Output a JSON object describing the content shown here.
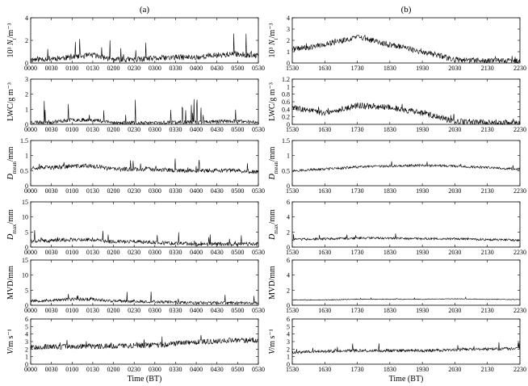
{
  "panels": [
    {
      "label": "(a)",
      "xlabel": "Time (BT)"
    },
    {
      "label": "(b)",
      "xlabel": "Time (BT)"
    }
  ],
  "chart_data": [
    {
      "type": "line",
      "column": 0,
      "ylabel": "10³ N_t/m⁻³",
      "ylim": [
        0,
        4
      ],
      "yticks": [
        "0",
        "2",
        "4"
      ],
      "x": [
        "0000",
        "0030",
        "0100",
        "0130",
        "0200",
        "0230",
        "0300",
        "0330",
        "0400",
        "0430",
        "0500",
        "0530"
      ],
      "values": [
        0.3,
        0.4,
        0.5,
        0.7,
        0.3,
        0.3,
        0.4,
        0.5,
        0.5,
        0.7,
        0.8,
        0.6
      ],
      "spike_amp": 2.4,
      "noise": 0.25,
      "seed": 11
    },
    {
      "type": "line",
      "column": 0,
      "ylabel": "LWC/g m⁻³",
      "ylim": [
        0,
        3
      ],
      "yticks": [
        "0",
        "1",
        "2",
        "3"
      ],
      "x": [
        "0000",
        "0030",
        "0100",
        "0130",
        "0200",
        "0230",
        "0300",
        "0330",
        "0400",
        "0430",
        "0500",
        "0530"
      ],
      "values": [
        0.15,
        0.15,
        0.3,
        0.3,
        0.1,
        0.1,
        0.1,
        0.15,
        0.15,
        0.2,
        0.2,
        0.15
      ],
      "spike_amp": 1.6,
      "noise": 0.12,
      "seed": 23
    },
    {
      "type": "line",
      "column": 0,
      "ylabel": "D_mean/mm",
      "ylim": [
        0,
        1.5
      ],
      "yticks": [
        "0",
        "0.5",
        "1",
        "1.5"
      ],
      "x": [
        "0000",
        "0030",
        "0100",
        "0130",
        "0200",
        "0230",
        "0300",
        "0330",
        "0400",
        "0430",
        "0500",
        "0530"
      ],
      "values": [
        0.6,
        0.6,
        0.65,
        0.65,
        0.55,
        0.55,
        0.55,
        0.5,
        0.5,
        0.5,
        0.5,
        0.45
      ],
      "spike_amp": 0.5,
      "noise": 0.07,
      "seed": 37
    },
    {
      "type": "line",
      "column": 0,
      "ylabel": "D_max/mm",
      "ylim": [
        0,
        15
      ],
      "yticks": [
        "0",
        "5",
        "10",
        "15"
      ],
      "x": [
        "0000",
        "0030",
        "0100",
        "0130",
        "0200",
        "0230",
        "0300",
        "0330",
        "0400",
        "0430",
        "0500",
        "0530"
      ],
      "values": [
        2,
        2.2,
        2.5,
        2.5,
        1.8,
        1.8,
        1.5,
        1.2,
        1,
        1,
        1,
        1
      ],
      "spike_amp": 4,
      "noise": 0.6,
      "seed": 41
    },
    {
      "type": "line",
      "column": 0,
      "ylabel": "MVD/mm",
      "ylim": [
        0,
        15
      ],
      "yticks": [
        "0",
        "5",
        "10",
        "15"
      ],
      "x": [
        "0000",
        "0030",
        "0100",
        "0130",
        "0200",
        "0230",
        "0300",
        "0330",
        "0400",
        "0430",
        "0500",
        "0530"
      ],
      "values": [
        1.5,
        1.6,
        2,
        2,
        1.4,
        1.3,
        1.2,
        1,
        0.8,
        0.8,
        0.8,
        0.8
      ],
      "spike_amp": 3,
      "noise": 0.5,
      "seed": 53
    },
    {
      "type": "line",
      "column": 0,
      "ylabel": "V/m s⁻¹",
      "ylim": [
        0,
        6
      ],
      "yticks": [
        "0",
        "1",
        "2",
        "3",
        "4",
        "5",
        "6"
      ],
      "x": [
        "0000",
        "0030",
        "0100",
        "0130",
        "0200",
        "0230",
        "0300",
        "0330",
        "0400",
        "0430",
        "0500",
        "0530"
      ],
      "values": [
        2.3,
        2.3,
        2.3,
        2.4,
        2.4,
        2.5,
        2.5,
        2.7,
        2.9,
        3.1,
        3.2,
        3.2
      ],
      "spike_amp": 0.8,
      "noise": 0.35,
      "seed": 67
    },
    {
      "type": "line",
      "column": 1,
      "ylabel": "10³ N_t/m⁻³",
      "ylim": [
        0,
        4
      ],
      "yticks": [
        "0",
        "1",
        "2",
        "3",
        "4"
      ],
      "x": [
        "1530",
        "1630",
        "1730",
        "1830",
        "1930",
        "2030",
        "2130",
        "2230"
      ],
      "values": [
        1.2,
        1.6,
        2.3,
        1.6,
        1,
        0.3,
        0.2,
        0.15
      ],
      "spike_amp": 0.4,
      "noise": 0.25,
      "seed": 71
    },
    {
      "type": "line",
      "column": 1,
      "ylabel": "LWC/g m⁻³",
      "ylim": [
        0,
        1.2
      ],
      "yticks": [
        "0",
        "0.2",
        "0.4",
        "0.6",
        "0.8",
        "1",
        "1.2"
      ],
      "x": [
        "1530",
        "1630",
        "1730",
        "1830",
        "1930",
        "2030",
        "2130",
        "2230"
      ],
      "values": [
        0.45,
        0.3,
        0.5,
        0.45,
        0.3,
        0.08,
        0.05,
        0.04
      ],
      "spike_amp": 0.15,
      "noise": 0.08,
      "seed": 83
    },
    {
      "type": "line",
      "column": 1,
      "ylabel": "D_mean/mm",
      "ylim": [
        0,
        1.5
      ],
      "yticks": [
        "0",
        "0.5",
        "1",
        "1.5"
      ],
      "x": [
        "1530",
        "1630",
        "1730",
        "1830",
        "1930",
        "2030",
        "2130",
        "2230"
      ],
      "values": [
        0.5,
        0.55,
        0.62,
        0.65,
        0.68,
        0.65,
        0.6,
        0.55
      ],
      "spike_amp": 0.15,
      "noise": 0.04,
      "seed": 97
    },
    {
      "type": "line",
      "column": 1,
      "ylabel": "D_max/mm",
      "ylim": [
        0,
        6
      ],
      "yticks": [
        "0",
        "2",
        "4",
        "6"
      ],
      "x": [
        "1530",
        "1630",
        "1730",
        "1830",
        "1930",
        "2030",
        "2130",
        "2230"
      ],
      "values": [
        1,
        1.1,
        1.2,
        1.2,
        1.1,
        1.1,
        1,
        0.9
      ],
      "spike_amp": 0.7,
      "noise": 0.15,
      "seed": 103
    },
    {
      "type": "line",
      "column": 1,
      "ylabel": "MVD/mm",
      "ylim": [
        0,
        6
      ],
      "yticks": [
        "0",
        "2",
        "4",
        "6"
      ],
      "x": [
        "1530",
        "1630",
        "1730",
        "1830",
        "1930",
        "2030",
        "2130",
        "2230"
      ],
      "values": [
        0.7,
        0.7,
        0.8,
        0.8,
        0.8,
        0.85,
        0.8,
        0.75
      ],
      "spike_amp": 0.2,
      "noise": 0.05,
      "seed": 109
    },
    {
      "type": "line",
      "column": 1,
      "ylabel": "V/m s⁻¹",
      "ylim": [
        0,
        6
      ],
      "yticks": [
        "0",
        "1",
        "2",
        "3",
        "4",
        "5",
        "6"
      ],
      "x": [
        "1530",
        "1630",
        "1730",
        "1830",
        "1930",
        "2030",
        "2130",
        "2230"
      ],
      "values": [
        1.6,
        1.7,
        1.8,
        1.8,
        1.8,
        1.9,
        2,
        2.1
      ],
      "spike_amp": 0.9,
      "noise": 0.2,
      "seed": 127
    }
  ]
}
